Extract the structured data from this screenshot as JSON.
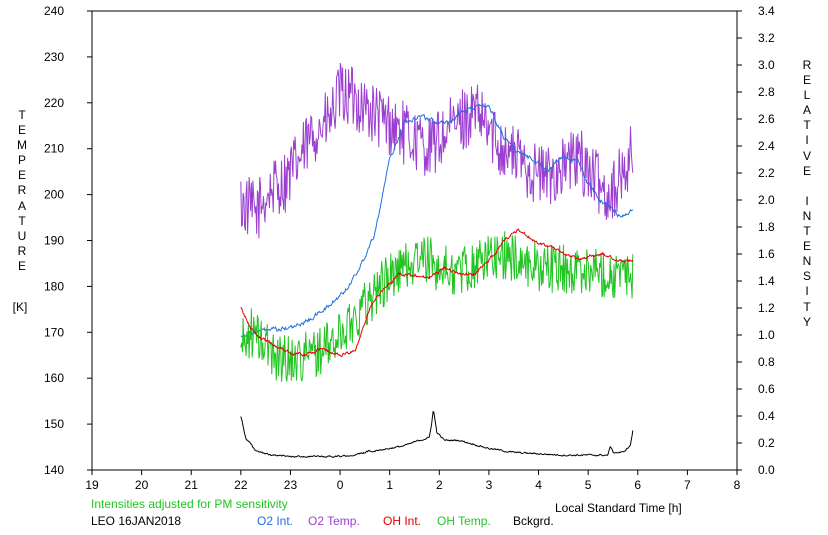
{
  "chart_data": {
    "type": "line",
    "footer": {
      "note": "Intensities adjusted for PM sensitivity",
      "station": "LEO 16JAN2018",
      "legend": [
        {
          "key": "o2_int",
          "label": "O2 Int."
        },
        {
          "key": "o2_temp",
          "label": "O2 Temp."
        },
        {
          "key": "oh_int",
          "label": "OH Int."
        },
        {
          "key": "oh_temp",
          "label": "OH Temp."
        },
        {
          "key": "bckgrd",
          "label": "Bckgrd."
        }
      ]
    },
    "xlabel": "Local Standard Time [h]",
    "ylabel_left": "TEMPERATURE",
    "ylabel_left_unit": "[K]",
    "ylabel_right": [
      "RELATIVE",
      "INTENSITY"
    ],
    "x_axis": {
      "min": 19,
      "max": 32,
      "ticks": [
        19,
        20,
        21,
        22,
        23,
        24,
        25,
        26,
        27,
        28,
        29,
        30,
        31,
        32
      ],
      "tick_labels": [
        "19",
        "20",
        "21",
        "22",
        "23",
        "0",
        "1",
        "2",
        "3",
        "4",
        "5",
        "6",
        "7",
        "8"
      ]
    },
    "y_left": {
      "min": 140,
      "max": 240,
      "ticks": [
        140,
        150,
        160,
        170,
        180,
        190,
        200,
        210,
        220,
        230,
        240
      ],
      "tick_labels": [
        "140",
        "150",
        "160",
        "170",
        "180",
        "190",
        "200",
        "210",
        "220",
        "230",
        "240"
      ]
    },
    "y_right": {
      "min": 0,
      "max": 3.4,
      "step": 0.2,
      "tick_labels": [
        "0.0",
        "0.2",
        "0.4",
        "0.6",
        "0.8",
        "1.0",
        "1.2",
        "1.4",
        "1.6",
        "1.8",
        "2.0",
        "2.2",
        "2.4",
        "2.6",
        "2.8",
        "3.0",
        "3.2",
        "3.4"
      ]
    },
    "colors": {
      "o2_int": "#1f6fe0",
      "o2_temp": "#9b3fd0",
      "oh_int": "#e00000",
      "oh_temp": "#22c422",
      "bckgrd": "#000000",
      "note": "#22c422"
    },
    "series": [
      {
        "key": "o2_temp",
        "name": "O2 Temp.",
        "axis": "left",
        "noise": 7.0,
        "x": [
          22.0,
          22.3,
          22.6,
          22.9,
          23.2,
          23.5,
          23.8,
          24.0,
          24.3,
          24.6,
          24.9,
          25.2,
          25.5,
          25.8,
          26.1,
          26.4,
          26.7,
          27.0,
          27.3,
          27.6,
          27.9,
          28.2,
          28.5,
          28.8,
          29.1,
          29.4,
          29.7,
          29.9
        ],
        "y": [
          198,
          196,
          201,
          203,
          208,
          214,
          216,
          222,
          221,
          218,
          216,
          214,
          212,
          210,
          213,
          216,
          218,
          214,
          210,
          208,
          205,
          204,
          206,
          208,
          204,
          200,
          204,
          210
        ]
      },
      {
        "key": "o2_int",
        "name": "O2 Int.",
        "axis": "right",
        "noise": 0.035,
        "x": [
          22.0,
          22.4,
          22.8,
          23.1,
          23.4,
          23.8,
          24.1,
          24.4,
          24.7,
          25.0,
          25.3,
          25.6,
          25.9,
          26.2,
          26.6,
          26.9,
          27.0,
          27.3,
          27.6,
          27.9,
          28.2,
          28.5,
          28.8,
          29.0,
          29.2,
          29.4,
          29.6,
          29.8,
          29.9
        ],
        "y": [
          1.0,
          1.03,
          1.04,
          1.06,
          1.12,
          1.22,
          1.33,
          1.5,
          1.76,
          2.3,
          2.57,
          2.63,
          2.58,
          2.58,
          2.68,
          2.7,
          2.69,
          2.47,
          2.35,
          2.3,
          2.22,
          2.33,
          2.28,
          2.12,
          2.02,
          1.95,
          1.9,
          1.88,
          1.95
        ]
      },
      {
        "key": "oh_temp",
        "name": "OH Temp.",
        "axis": "left",
        "noise": 5.5,
        "x": [
          22.0,
          22.2,
          22.4,
          22.7,
          23.0,
          23.3,
          23.6,
          23.9,
          24.2,
          24.5,
          24.8,
          25.1,
          25.4,
          25.7,
          26.0,
          26.3,
          26.6,
          26.9,
          27.2,
          27.5,
          27.8,
          28.1,
          28.4,
          28.7,
          29.0,
          29.3,
          29.6,
          29.9
        ],
        "y": [
          167,
          170,
          168,
          165,
          164,
          165,
          166,
          168,
          172,
          176,
          180,
          183,
          185,
          186,
          184,
          183,
          184,
          186,
          187,
          186,
          185,
          184,
          184,
          183,
          184,
          183,
          182,
          182
        ]
      },
      {
        "key": "oh_int",
        "name": "OH Int.",
        "axis": "right",
        "noise": 0.025,
        "x": [
          22.0,
          22.2,
          22.4,
          22.7,
          23.0,
          23.3,
          23.6,
          24.0,
          24.3,
          24.6,
          24.9,
          25.2,
          25.5,
          25.8,
          26.1,
          26.4,
          26.7,
          27.0,
          27.3,
          27.6,
          27.9,
          28.2,
          28.5,
          28.8,
          29.0,
          29.3,
          29.6,
          29.9
        ],
        "y": [
          1.2,
          1.05,
          0.98,
          0.92,
          0.87,
          0.85,
          0.9,
          0.85,
          0.88,
          1.2,
          1.35,
          1.45,
          1.45,
          1.42,
          1.5,
          1.45,
          1.45,
          1.55,
          1.7,
          1.78,
          1.7,
          1.66,
          1.6,
          1.56,
          1.58,
          1.6,
          1.55,
          1.55
        ]
      },
      {
        "key": "bckgrd",
        "name": "Bckgrd.",
        "axis": "right",
        "noise": 0.012,
        "x": [
          22.0,
          22.05,
          22.1,
          22.3,
          22.6,
          23.0,
          23.5,
          24.0,
          24.3,
          24.6,
          25.0,
          25.3,
          25.6,
          25.8,
          25.85,
          25.88,
          25.95,
          26.1,
          26.4,
          26.7,
          27.0,
          27.5,
          28.0,
          28.5,
          29.0,
          29.4,
          29.45,
          29.5,
          29.7,
          29.85,
          29.9
        ],
        "y": [
          0.4,
          0.32,
          0.24,
          0.14,
          0.11,
          0.1,
          0.1,
          0.1,
          0.11,
          0.14,
          0.16,
          0.18,
          0.22,
          0.24,
          0.36,
          0.45,
          0.28,
          0.22,
          0.22,
          0.19,
          0.16,
          0.13,
          0.12,
          0.11,
          0.11,
          0.11,
          0.18,
          0.13,
          0.13,
          0.18,
          0.29
        ]
      }
    ]
  }
}
